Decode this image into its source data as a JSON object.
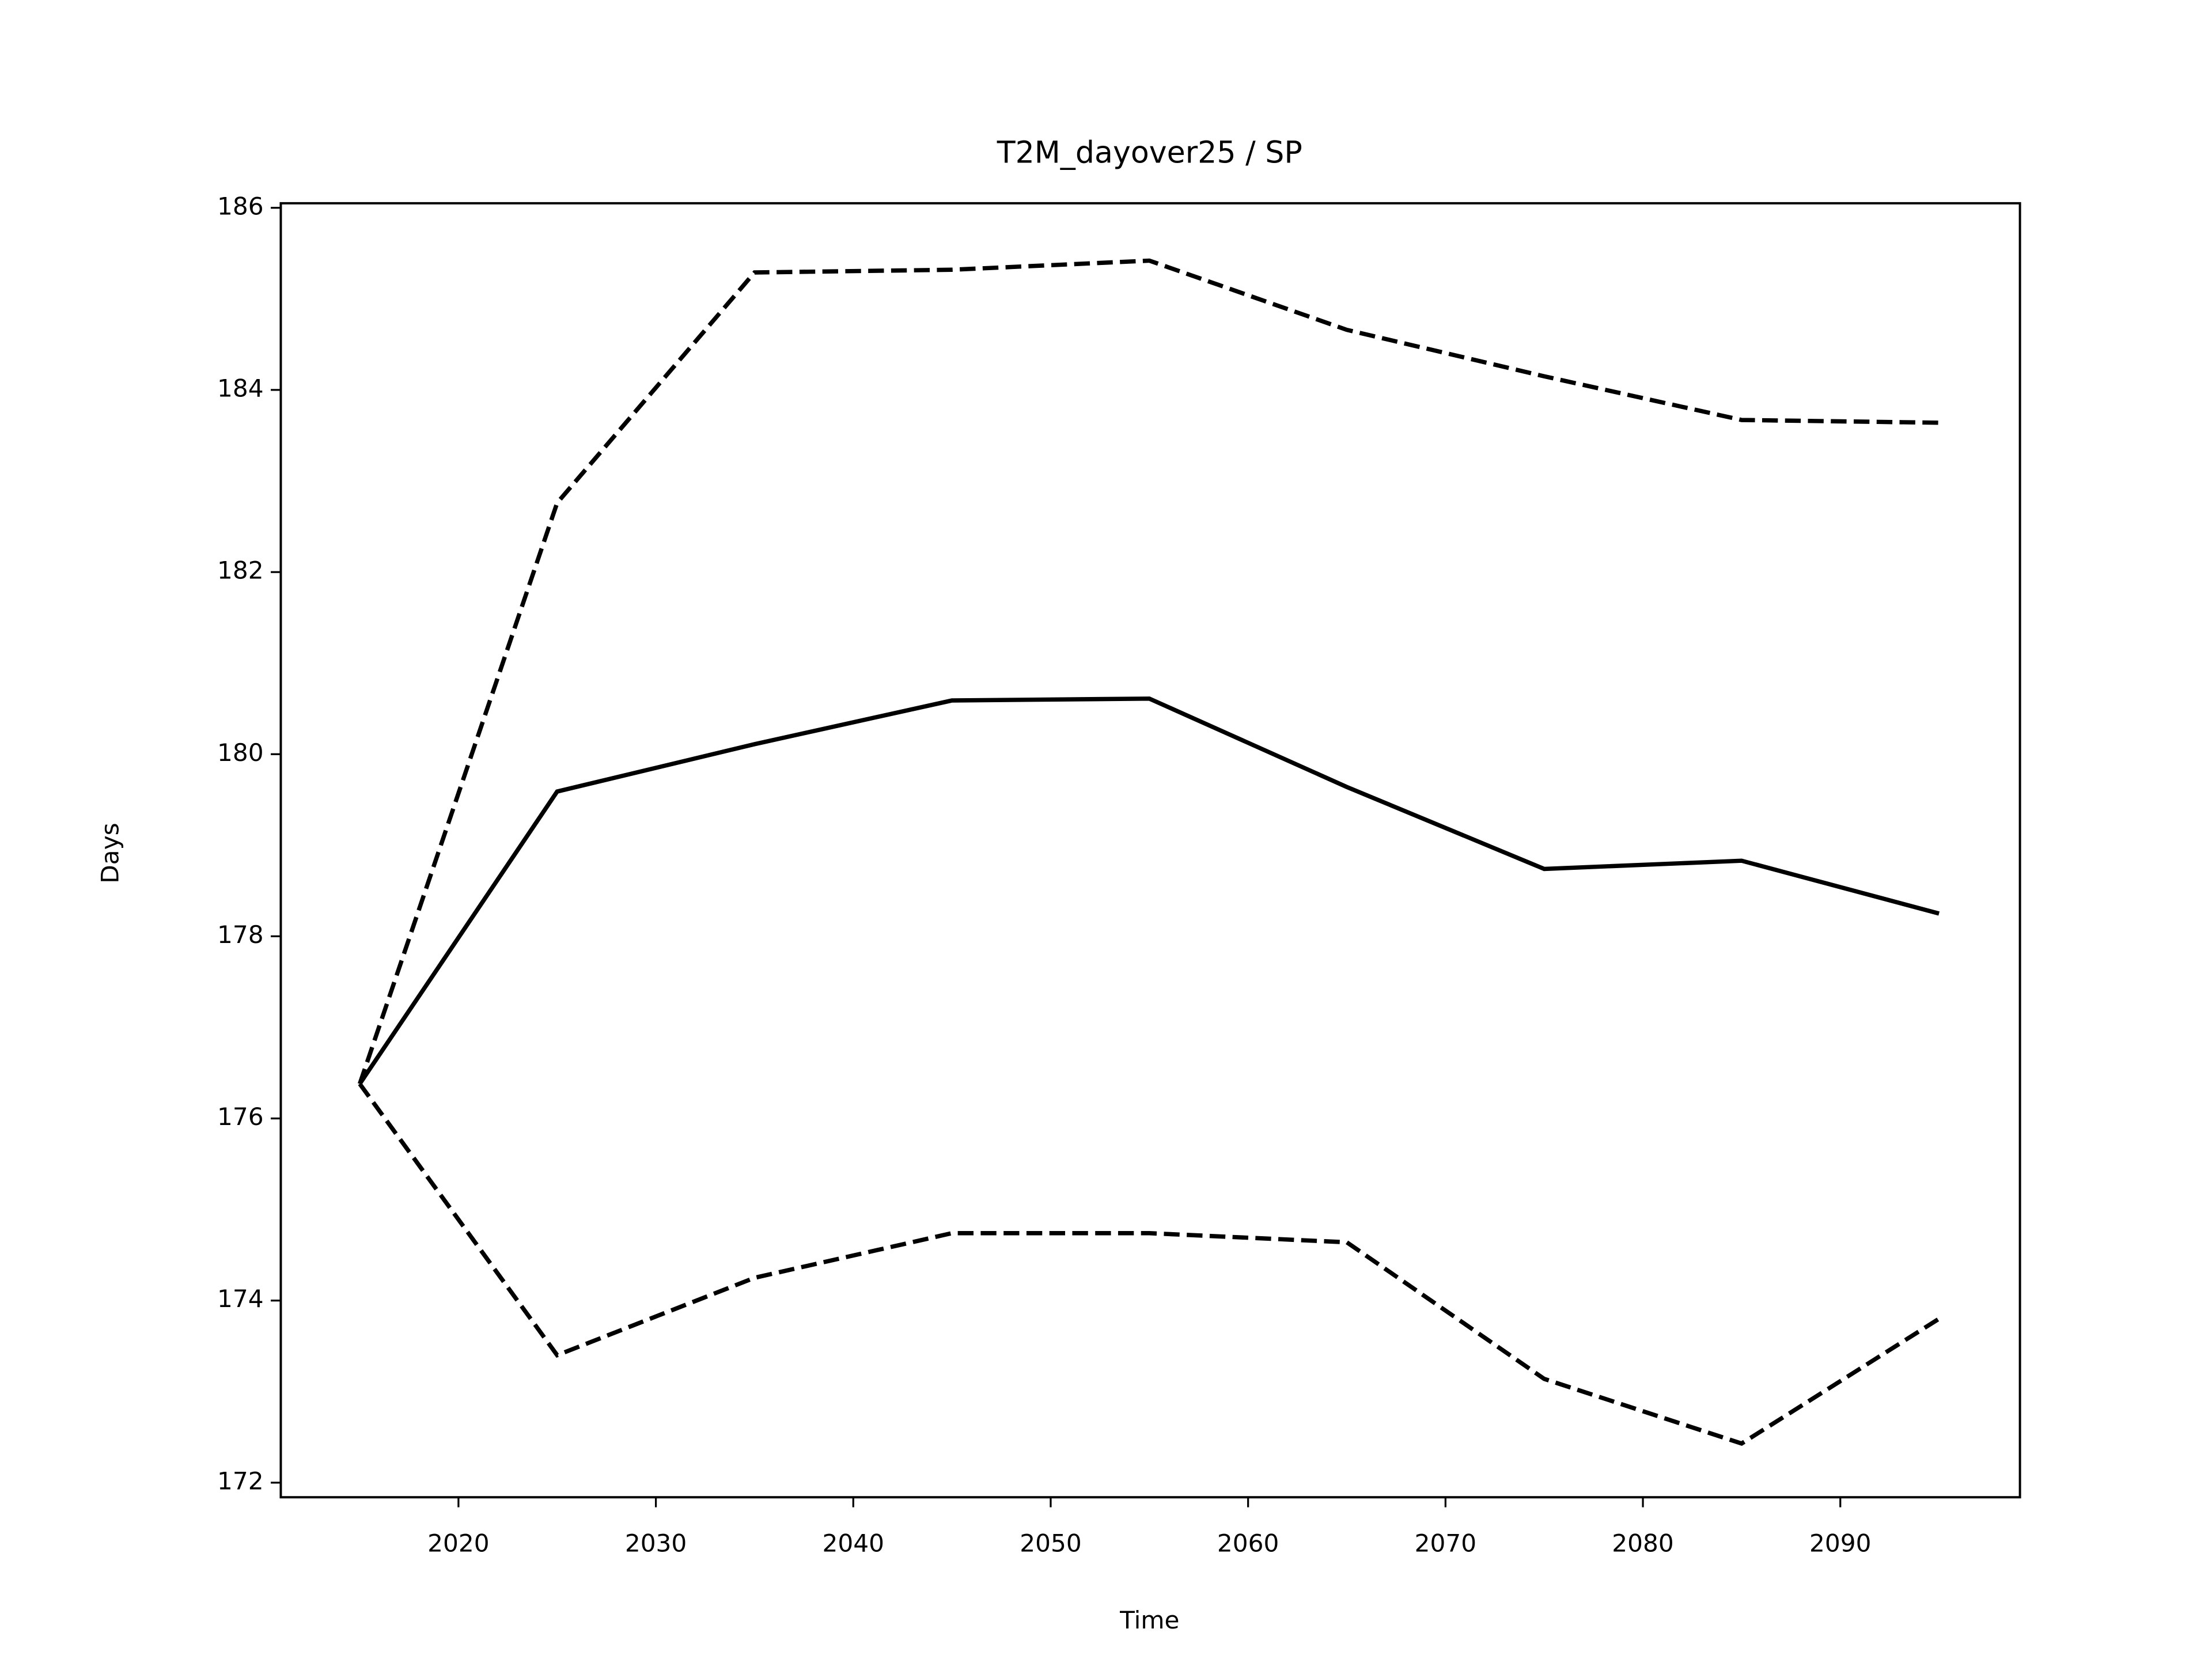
{
  "chart_data": {
    "type": "line",
    "title": "T2M_dayover25 / SP",
    "xlabel": "Time",
    "ylabel": "Days",
    "x": [
      2015,
      2025,
      2035,
      2045,
      2055,
      2065,
      2075,
      2085,
      2095
    ],
    "series": [
      {
        "color": "#000000",
        "linestyle": "solid",
        "values": [
          176.38,
          179.59,
          180.11,
          180.59,
          180.61,
          179.64,
          178.74,
          178.83,
          178.25
        ]
      },
      {
        "color": "#000000",
        "linestyle": "dashed",
        "values": [
          176.38,
          182.76,
          185.29,
          185.32,
          185.42,
          184.66,
          184.15,
          183.67,
          183.64
        ]
      },
      {
        "color": "#000000",
        "linestyle": "dashed",
        "values": [
          176.38,
          173.4,
          174.25,
          174.74,
          174.74,
          174.64,
          173.14,
          172.43,
          173.8
        ]
      }
    ],
    "xlim": [
      2011,
      2099.1
    ],
    "ylim": [
      171.84,
      186.05
    ],
    "xticks": [
      2020,
      2030,
      2040,
      2050,
      2060,
      2070,
      2080,
      2090
    ],
    "yticks": [
      172,
      174,
      176,
      178,
      180,
      182,
      184,
      186
    ],
    "grid": false
  }
}
